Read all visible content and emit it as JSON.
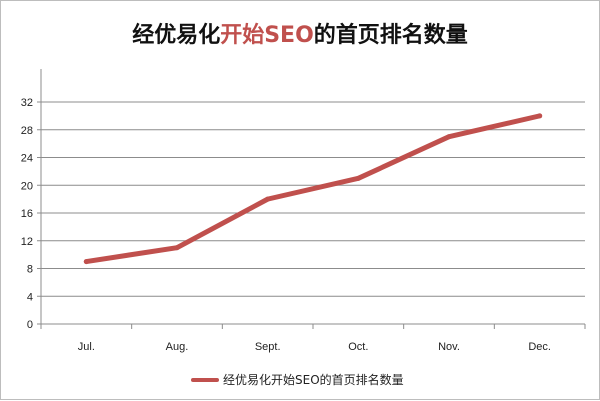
{
  "chart_data": {
    "type": "line",
    "title_parts": {
      "lead": "经优易化",
      "accent": "开始SEO",
      "tail": "的首页排名数量"
    },
    "title": "经优易化开始SEO的首页排名数量",
    "categories": [
      "Jul.",
      "Aug.",
      "Sept.",
      "Oct.",
      "Nov.",
      "Dec."
    ],
    "series": [
      {
        "name": "经优易化开始SEO的首页排名数量",
        "values": [
          9,
          11,
          18,
          21,
          27,
          30
        ],
        "color": "#c0504d"
      }
    ],
    "ylim": [
      0,
      32
    ],
    "yticks": [
      0,
      4,
      8,
      12,
      16,
      20,
      24,
      28,
      32
    ],
    "grid": true,
    "legend_position": "bottom",
    "accent_color": "#c0504d"
  }
}
